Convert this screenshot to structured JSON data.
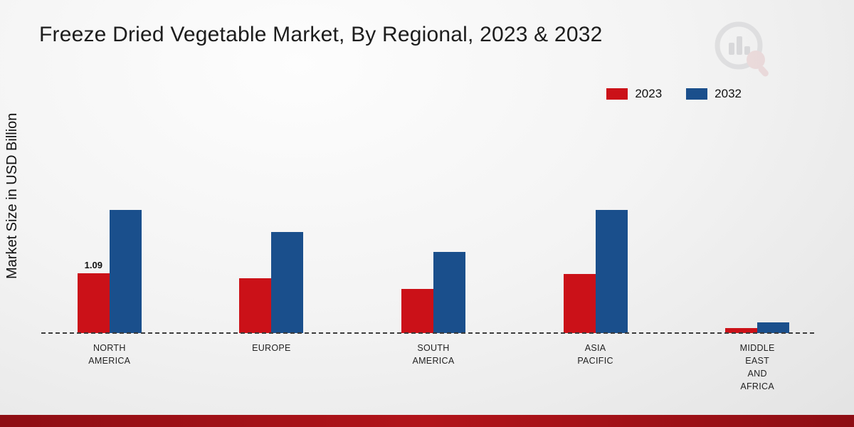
{
  "title": "Freeze Dried Vegetable Market, By Regional, 2023 & 2032",
  "y_axis_label": "Market Size in USD Billion",
  "legend": [
    {
      "label": "2023",
      "color": "#cb1118"
    },
    {
      "label": "2032",
      "color": "#1a4f8c"
    }
  ],
  "chart_data": {
    "type": "bar",
    "title": "Freeze Dried Vegetable Market, By Regional, 2023 & 2032",
    "xlabel": "",
    "ylabel": "Market Size in USD Billion",
    "categories": [
      "NORTH AMERICA",
      "EUROPE",
      "SOUTH AMERICA",
      "ASIA PACIFIC",
      "MIDDLE EAST AND AFRICA"
    ],
    "series": [
      {
        "name": "2023",
        "color": "#cb1118",
        "values": [
          1.09,
          1.0,
          0.8,
          1.08,
          0.09
        ]
      },
      {
        "name": "2032",
        "color": "#1a4f8c",
        "values": [
          2.25,
          1.85,
          1.48,
          2.25,
          0.2
        ]
      }
    ],
    "ylim": [
      0,
      2.6
    ],
    "grid": false,
    "legend_position": "top-right",
    "baseline_style": "dashed",
    "data_labels": [
      {
        "category_index": 0,
        "series_index": 0,
        "text": "1.09"
      }
    ]
  }
}
